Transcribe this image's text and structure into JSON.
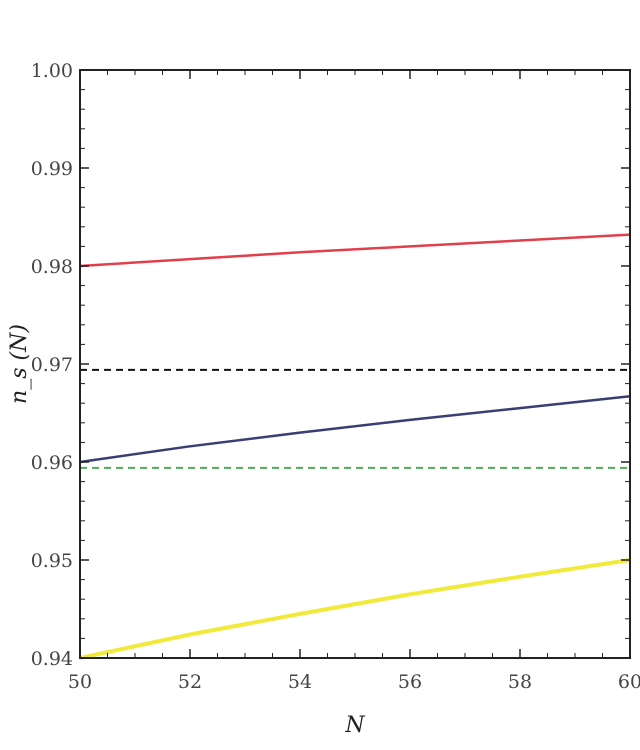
{
  "chart_data": {
    "type": "line",
    "title": "",
    "xlabel": "N",
    "ylabel": "n_s (N)",
    "xlim": [
      50,
      60
    ],
    "ylim": [
      0.94,
      1.0
    ],
    "x_ticks": [
      "50",
      "52",
      "54",
      "56",
      "58",
      "60"
    ],
    "y_ticks": [
      "0.94",
      "0.95",
      "0.96",
      "0.97",
      "0.98",
      "0.99",
      "1.00"
    ],
    "grid": false,
    "series": [
      {
        "color": "#e0404a",
        "dash": "solid",
        "x": [
          50,
          52,
          54,
          56,
          58,
          60
        ],
        "y": [
          0.98,
          0.9807,
          0.9814,
          0.982,
          0.9826,
          0.9832
        ]
      },
      {
        "color": "#3a3f73",
        "dash": "solid",
        "x": [
          50,
          52,
          54,
          56,
          58,
          60
        ],
        "y": [
          0.96,
          0.9616,
          0.963,
          0.9643,
          0.9655,
          0.9667
        ]
      },
      {
        "color": "#f2ea3a",
        "dash": "solid",
        "x": [
          50,
          52,
          54,
          56,
          58,
          60
        ],
        "y": [
          0.94,
          0.9424,
          0.9445,
          0.9465,
          0.9483,
          0.95
        ]
      },
      {
        "color": "#111111",
        "dash": "dashed",
        "x": [
          50,
          60
        ],
        "y": [
          0.9694,
          0.9694
        ]
      },
      {
        "color": "#4caf50",
        "dash": "dashed",
        "x": [
          50,
          60
        ],
        "y": [
          0.9594,
          0.9594
        ]
      }
    ]
  }
}
